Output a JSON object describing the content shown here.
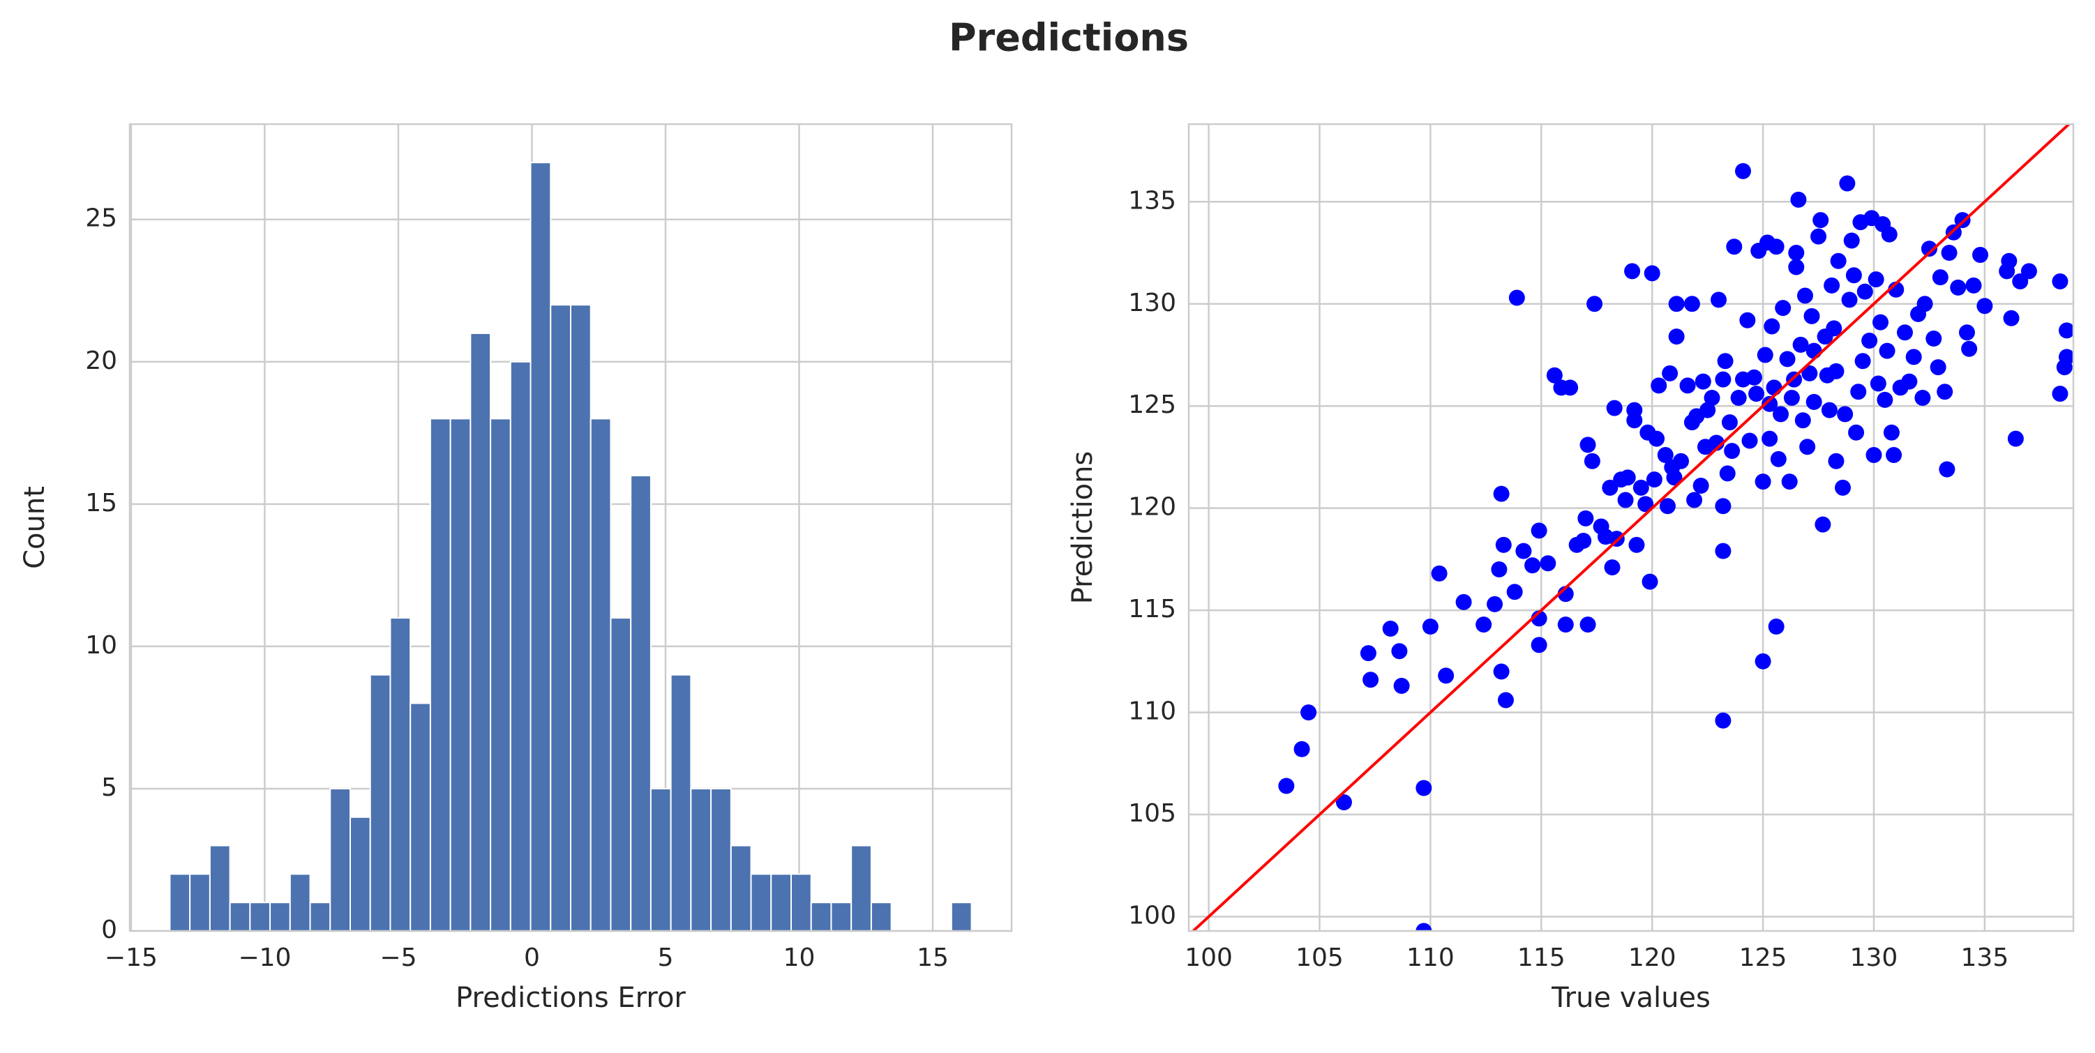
{
  "title": "Predictions",
  "chart_data": [
    {
      "type": "histogram",
      "xlabel": "Predictions Error",
      "ylabel": "Count",
      "bins": [
        -13.55,
        -12.8,
        -12.05,
        -11.3,
        -10.55,
        -9.8,
        -9.05,
        -8.3,
        -7.55,
        -6.8,
        -6.05,
        -5.3,
        -4.55,
        -3.8,
        -3.05,
        -2.3,
        -1.55,
        -0.8,
        -0.05,
        0.7,
        1.45,
        2.2,
        2.95,
        3.7,
        4.45,
        5.2,
        5.95,
        6.7,
        7.45,
        8.2,
        8.95,
        9.7,
        10.45,
        11.2,
        11.95,
        12.7,
        13.45,
        14.2,
        14.95,
        15.7,
        16.45
      ],
      "values": [
        2,
        2,
        3,
        1,
        1,
        1,
        2,
        1,
        5,
        4,
        9,
        11,
        8,
        18,
        18,
        21,
        18,
        20,
        27,
        22,
        22,
        18,
        11,
        16,
        5,
        9,
        5,
        5,
        3,
        2,
        2,
        2,
        1,
        1,
        3,
        1,
        0,
        0,
        0,
        1
      ],
      "color": "#4c72b0",
      "xlim": [
        -15.05,
        17.95
      ],
      "ylim": [
        0,
        28.35
      ],
      "xticks": [
        {
          "value": -15,
          "label": "−15"
        },
        {
          "value": -10,
          "label": "−10"
        },
        {
          "value": -5,
          "label": "−5"
        },
        0,
        5,
        10,
        15
      ],
      "yticks": [
        0,
        5,
        10,
        15,
        20,
        25
      ],
      "grid": true
    },
    {
      "type": "scatter",
      "xlabel": "True values",
      "ylabel": "Predictions",
      "x": [
        103.5,
        104.2,
        104.5,
        106.1,
        107.2,
        107.3,
        108.2,
        108.6,
        108.7,
        109.7,
        109.7,
        110.0,
        110.4,
        110.7,
        111.5,
        112.4,
        112.9,
        113.1,
        113.2,
        113.2,
        113.3,
        113.4,
        113.8,
        113.9,
        114.2,
        114.6,
        114.9,
        114.9,
        114.9,
        115.3,
        115.6,
        115.9,
        116.1,
        116.1,
        116.3,
        116.6,
        116.9,
        117.0,
        117.1,
        117.1,
        117.3,
        117.4,
        117.7,
        117.9,
        118.1,
        118.2,
        118.3,
        118.4,
        118.6,
        118.8,
        118.9,
        119.1,
        119.2,
        119.2,
        119.3,
        119.5,
        119.7,
        119.8,
        119.9,
        120.0,
        120.1,
        120.2,
        120.3,
        120.6,
        120.7,
        120.8,
        120.9,
        121.0,
        121.1,
        121.1,
        121.3,
        121.6,
        121.8,
        121.8,
        121.9,
        122.0,
        122.2,
        122.3,
        122.4,
        122.5,
        122.7,
        122.9,
        123.0,
        123.2,
        123.3,
        123.2,
        123.2,
        123.2,
        123.4,
        123.5,
        123.6,
        123.7,
        123.9,
        124.1,
        124.1,
        124.3,
        124.4,
        124.6,
        124.7,
        124.8,
        125.0,
        125.0,
        125.1,
        125.2,
        125.3,
        125.3,
        125.4,
        125.5,
        125.6,
        125.6,
        125.7,
        125.8,
        125.9,
        126.1,
        126.2,
        126.3,
        126.4,
        126.5,
        126.5,
        126.6,
        126.7,
        126.8,
        126.9,
        127.0,
        127.1,
        127.2,
        127.3,
        127.3,
        127.5,
        127.6,
        127.7,
        127.8,
        127.9,
        128.0,
        128.1,
        128.2,
        128.3,
        128.3,
        128.4,
        128.6,
        128.7,
        128.8,
        128.9,
        129.0,
        129.1,
        129.2,
        129.3,
        129.4,
        129.5,
        129.6,
        129.8,
        129.9,
        130.0,
        130.1,
        130.2,
        130.3,
        130.4,
        130.5,
        130.6,
        130.7,
        130.8,
        130.9,
        131.0,
        131.2,
        131.4,
        131.6,
        131.8,
        132.0,
        132.2,
        132.3,
        132.5,
        132.7,
        132.9,
        133.0,
        133.2,
        133.3,
        133.4,
        133.6,
        133.8,
        134.0,
        134.2,
        134.3,
        134.5,
        134.8,
        135.0,
        136.0,
        136.1,
        136.2,
        136.4,
        136.6,
        137.0,
        138.4,
        138.4,
        138.7,
        138.7,
        138.6
      ],
      "y": [
        106.4,
        108.2,
        110,
        105.6,
        112.9,
        111.6,
        114.1,
        113,
        111.3,
        106.3,
        99.3,
        114.2,
        116.8,
        111.8,
        115.4,
        114.3,
        115.3,
        117,
        112,
        120.7,
        118.2,
        110.6,
        115.9,
        130.3,
        117.9,
        117.2,
        114.6,
        113.3,
        118.9,
        117.3,
        126.5,
        125.9,
        114.3,
        115.8,
        125.9,
        118.2,
        118.4,
        119.5,
        114.3,
        123.1,
        122.3,
        130,
        119.1,
        118.6,
        121,
        117.1,
        124.9,
        118.5,
        121.4,
        120.4,
        121.5,
        131.6,
        124.8,
        124.3,
        118.2,
        121,
        120.2,
        123.7,
        116.4,
        131.5,
        121.4,
        123.4,
        126,
        122.6,
        120.1,
        126.6,
        122,
        121.5,
        128.4,
        130,
        122.3,
        126,
        124.2,
        130,
        120.4,
        124.5,
        121.1,
        126.2,
        123,
        124.8,
        125.4,
        123.2,
        130.2,
        126.3,
        127.2,
        120.1,
        117.9,
        109.6,
        121.7,
        124.2,
        122.8,
        132.8,
        125.4,
        136.5,
        126.3,
        129.2,
        123.3,
        126.4,
        125.6,
        132.6,
        112.5,
        121.3,
        127.5,
        133,
        123.4,
        125.1,
        128.9,
        125.9,
        132.8,
        114.2,
        122.4,
        124.6,
        129.8,
        127.3,
        121.3,
        125.4,
        126.3,
        131.8,
        132.5,
        135.1,
        128,
        124.3,
        130.4,
        123,
        126.6,
        129.4,
        127.7,
        125.2,
        133.3,
        134.1,
        119.2,
        128.4,
        126.5,
        124.8,
        130.9,
        128.8,
        122.3,
        126.7,
        132.1,
        121,
        124.6,
        135.9,
        130.2,
        133.1,
        131.4,
        123.7,
        125.7,
        134,
        127.2,
        130.6,
        128.2,
        134.2,
        122.6,
        131.2,
        126.1,
        129.1,
        133.9,
        125.3,
        127.7,
        133.4,
        123.7,
        122.6,
        130.7,
        125.9,
        128.6,
        126.2,
        127.4,
        129.5,
        125.4,
        130,
        132.7,
        128.3,
        126.9,
        131.3,
        125.7,
        121.9,
        132.5,
        133.5,
        130.8,
        134.1,
        128.6,
        127.8,
        130.9,
        132.4,
        129.9,
        131.6,
        132.1,
        129.3,
        123.4,
        131.1,
        131.6,
        131.1,
        125.6,
        128.7,
        127.4,
        126.9
      ],
      "color": "#0000ff",
      "line": {
        "x": [
          99.25,
          138.8
        ],
        "y": [
          99.25,
          138.8
        ],
        "color": "#ff0000"
      },
      "xlim": [
        99.1,
        139.0
      ],
      "ylim": [
        99.3,
        138.8
      ],
      "xticks": [
        100,
        105,
        110,
        115,
        120,
        125,
        130,
        135
      ],
      "yticks": [
        100,
        105,
        110,
        115,
        120,
        125,
        130,
        135
      ],
      "grid": true
    }
  ]
}
